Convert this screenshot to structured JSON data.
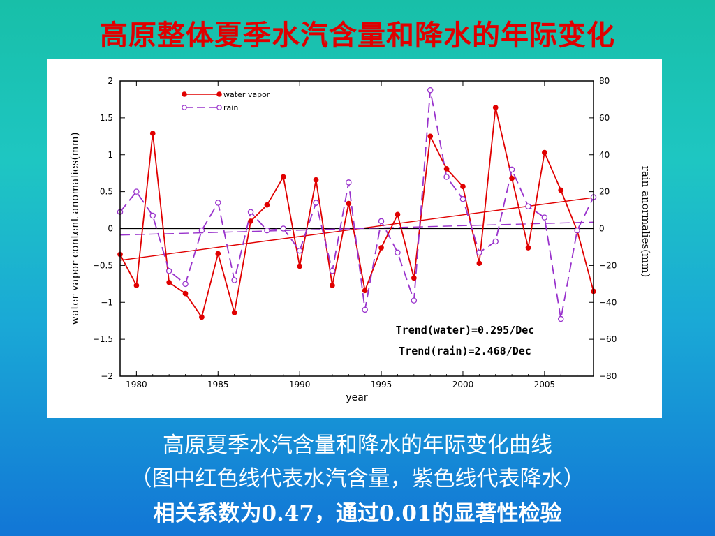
{
  "slide": {
    "title": "高原整体夏季水汽含量和降水的年际变化",
    "caption_line1": "高原夏季水汽含量和降水的年际变化曲线",
    "caption_line2": "（图中红色线代表水汽含量，紫色线代表降水）",
    "caption_line3": "相关系数为0.47，通过0.01的显著性检验"
  },
  "chart_data": {
    "type": "line",
    "xlabel": "year",
    "ylabel_left": "water vapor content anomalies(mm)",
    "ylabel_right": "rain anormalies(mm)",
    "xlim": [
      1979,
      2008
    ],
    "ylim_left": [
      -2,
      2
    ],
    "ylim_right": [
      -80,
      80
    ],
    "x_ticks": [
      1980,
      1985,
      1990,
      1995,
      2000,
      2005
    ],
    "y_ticks_left": [
      "2",
      "1.5",
      "1",
      "0.5",
      "0",
      "−0.5",
      "−1",
      "−1.5",
      "−2"
    ],
    "y_ticks_right": [
      "80",
      "60",
      "40",
      "20",
      "0",
      "−20",
      "−40",
      "−60",
      "−80"
    ],
    "legend_position": "top-left",
    "x": [
      1979,
      1980,
      1981,
      1982,
      1983,
      1984,
      1985,
      1986,
      1987,
      1988,
      1989,
      1990,
      1991,
      1992,
      1993,
      1994,
      1995,
      1996,
      1997,
      1998,
      1999,
      2000,
      2001,
      2002,
      2003,
      2004,
      2005,
      2006,
      2007,
      2008
    ],
    "series": [
      {
        "name": "water vapor",
        "axis": "left",
        "color": "#e00000",
        "style": "solid",
        "marker": "filled-circle",
        "values": [
          -0.35,
          -0.77,
          1.29,
          -0.73,
          -0.88,
          -1.2,
          -0.34,
          -1.14,
          0.1,
          0.32,
          0.7,
          -0.51,
          0.66,
          -0.77,
          0.34,
          -0.84,
          -0.26,
          0.19,
          -0.67,
          1.25,
          0.81,
          0.57,
          -0.47,
          1.64,
          0.68,
          -0.26,
          1.03,
          0.52,
          -0.03,
          -0.85
        ]
      },
      {
        "name": "rain",
        "axis": "right",
        "color": "#9933cc",
        "style": "dashed",
        "marker": "open-circle",
        "values": [
          9,
          20,
          7,
          -23,
          -30,
          -1,
          14,
          -28,
          9,
          -1,
          0,
          -12,
          14,
          -23,
          25,
          -44,
          4,
          -13,
          -39,
          75,
          28,
          16,
          -13,
          -7,
          32,
          12,
          6,
          -49,
          -1,
          17
        ]
      }
    ],
    "trendlines": [
      {
        "series": "water vapor",
        "axis": "left",
        "from": [
          1979,
          -0.43
        ],
        "to": [
          2008,
          0.42
        ],
        "color": "#e00000",
        "style": "solid"
      },
      {
        "series": "rain",
        "axis": "right",
        "from": [
          1979,
          -3.5
        ],
        "to": [
          2008,
          3.5
        ],
        "color": "#9933cc",
        "style": "dashed"
      }
    ],
    "annotations": [
      "Trend(water)=0.295/Dec",
      "Trend(rain)=2.468/Dec"
    ]
  }
}
